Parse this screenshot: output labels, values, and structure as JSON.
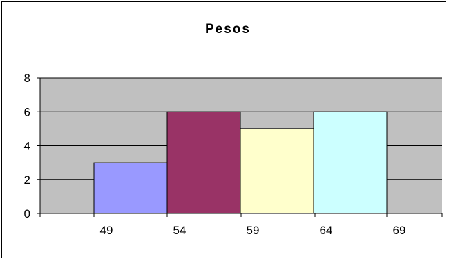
{
  "chart_data": {
    "type": "bar",
    "title": "Pesos",
    "xlabel": "",
    "ylabel": "",
    "x_ticks": [
      "49",
      "54",
      "59",
      "64",
      "69"
    ],
    "bins": [
      {
        "from": "49",
        "to": "54",
        "value": 3,
        "color": "#9999ff"
      },
      {
        "from": "54",
        "to": "59",
        "value": 6,
        "color": "#993366"
      },
      {
        "from": "59",
        "to": "64",
        "value": 5,
        "color": "#ffffcc"
      },
      {
        "from": "64",
        "to": "69",
        "value": 6,
        "color": "#ccffff"
      }
    ],
    "y_ticks": [
      0,
      2,
      4,
      6,
      8
    ],
    "ylim": [
      0,
      8
    ],
    "grid": "horizontal",
    "legend": "none",
    "plot_background": "#c0c0c0",
    "bar_outline": "#000000"
  }
}
